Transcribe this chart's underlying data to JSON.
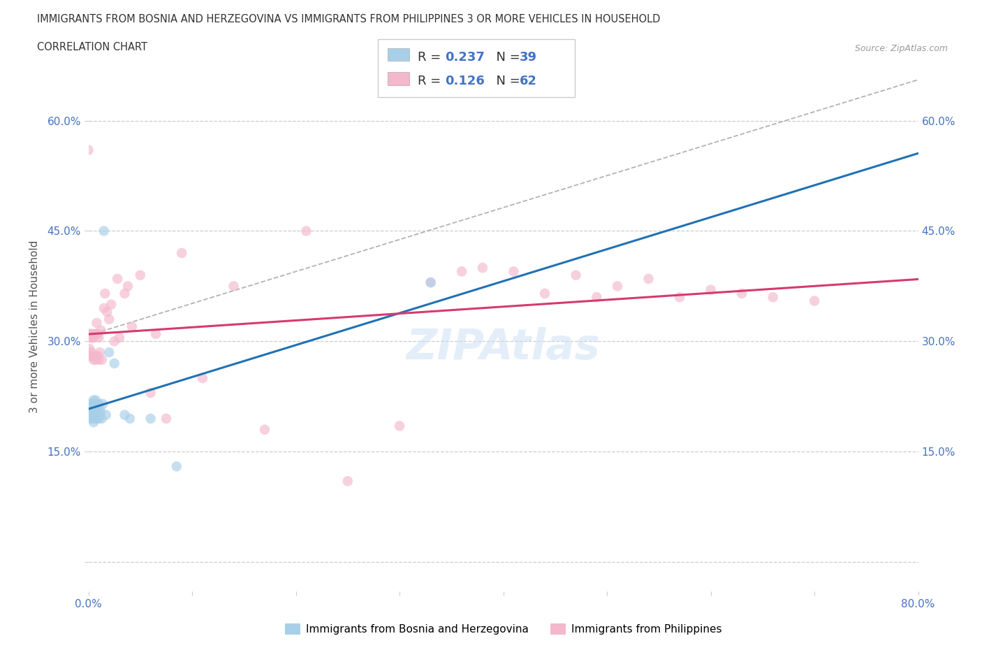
{
  "title_line1": "IMMIGRANTS FROM BOSNIA AND HERZEGOVINA VS IMMIGRANTS FROM PHILIPPINES 3 OR MORE VEHICLES IN HOUSEHOLD",
  "title_line2": "CORRELATION CHART",
  "source": "Source: ZipAtlas.com",
  "ylabel": "3 or more Vehicles in Household",
  "xlim": [
    0.0,
    0.8
  ],
  "ylim": [
    -0.04,
    0.68
  ],
  "ytick_positions": [
    0.0,
    0.15,
    0.3,
    0.45,
    0.6
  ],
  "ytick_labels": [
    "",
    "15.0%",
    "30.0%",
    "45.0%",
    "60.0%"
  ],
  "xtick_positions": [
    0.0,
    0.1,
    0.2,
    0.3,
    0.4,
    0.5,
    0.6,
    0.7,
    0.8
  ],
  "xtick_labels": [
    "0.0%",
    "",
    "",
    "",
    "",
    "",
    "",
    "",
    "80.0%"
  ],
  "legend_R1": "0.237",
  "legend_N1": "39",
  "legend_R2": "0.126",
  "legend_N2": "62",
  "color_blue_scatter": "#a8cfe8",
  "color_pink_scatter": "#f4b8cc",
  "color_blue_line": "#2171b5",
  "color_pink_line": "#d63a70",
  "color_dashed": "#aaaaaa",
  "color_tick_label": "#4472c4",
  "color_grid": "#cccccc",
  "watermark_color": "#cce0f5",
  "scatter_alpha": 0.65,
  "scatter_size": 110,
  "bosnia_x": [
    0.0,
    0.0,
    0.0,
    0.001,
    0.001,
    0.002,
    0.002,
    0.003,
    0.003,
    0.004,
    0.004,
    0.005,
    0.005,
    0.005,
    0.006,
    0.006,
    0.007,
    0.007,
    0.007,
    0.008,
    0.008,
    0.009,
    0.009,
    0.01,
    0.01,
    0.01,
    0.011,
    0.012,
    0.013,
    0.014,
    0.015,
    0.017,
    0.02,
    0.025,
    0.035,
    0.04,
    0.06,
    0.085,
    0.33
  ],
  "bosnia_y": [
    0.2,
    0.21,
    0.215,
    0.195,
    0.205,
    0.2,
    0.215,
    0.195,
    0.21,
    0.2,
    0.215,
    0.19,
    0.205,
    0.22,
    0.195,
    0.215,
    0.195,
    0.21,
    0.22,
    0.195,
    0.21,
    0.2,
    0.215,
    0.195,
    0.205,
    0.215,
    0.2,
    0.205,
    0.195,
    0.215,
    0.45,
    0.2,
    0.285,
    0.27,
    0.2,
    0.195,
    0.195,
    0.13,
    0.38
  ],
  "philippines_x": [
    0.0,
    0.0,
    0.0,
    0.001,
    0.001,
    0.002,
    0.002,
    0.003,
    0.003,
    0.004,
    0.004,
    0.005,
    0.005,
    0.006,
    0.006,
    0.007,
    0.007,
    0.008,
    0.008,
    0.009,
    0.009,
    0.01,
    0.01,
    0.011,
    0.012,
    0.013,
    0.015,
    0.016,
    0.018,
    0.02,
    0.022,
    0.025,
    0.028,
    0.03,
    0.035,
    0.038,
    0.042,
    0.05,
    0.06,
    0.065,
    0.075,
    0.09,
    0.11,
    0.14,
    0.17,
    0.21,
    0.25,
    0.3,
    0.33,
    0.36,
    0.38,
    0.41,
    0.44,
    0.47,
    0.49,
    0.51,
    0.54,
    0.57,
    0.6,
    0.63,
    0.66,
    0.7
  ],
  "philippines_y": [
    0.28,
    0.31,
    0.56,
    0.29,
    0.31,
    0.28,
    0.305,
    0.285,
    0.31,
    0.28,
    0.305,
    0.275,
    0.305,
    0.28,
    0.31,
    0.275,
    0.31,
    0.28,
    0.325,
    0.28,
    0.31,
    0.275,
    0.305,
    0.285,
    0.315,
    0.275,
    0.345,
    0.365,
    0.34,
    0.33,
    0.35,
    0.3,
    0.385,
    0.305,
    0.365,
    0.375,
    0.32,
    0.39,
    0.23,
    0.31,
    0.195,
    0.42,
    0.25,
    0.375,
    0.18,
    0.45,
    0.11,
    0.185,
    0.38,
    0.395,
    0.4,
    0.395,
    0.365,
    0.39,
    0.36,
    0.375,
    0.385,
    0.36,
    0.37,
    0.365,
    0.36,
    0.355
  ]
}
